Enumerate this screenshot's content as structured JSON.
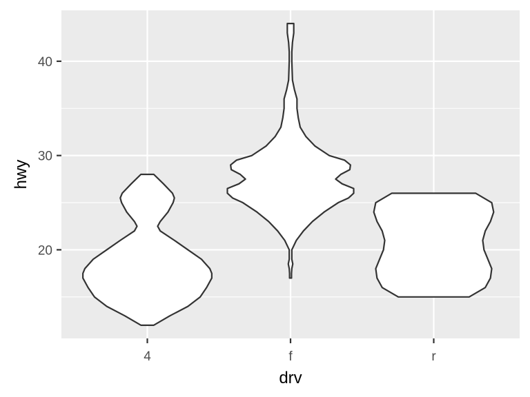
{
  "chart_data": {
    "type": "violin",
    "xlabel": "drv",
    "ylabel": "hwy",
    "categories": [
      "4",
      "f",
      "r"
    ],
    "ylim": [
      10.6,
      45.4
    ],
    "yticks": [
      20,
      30,
      40
    ],
    "y_minor_ticks": [
      15,
      25,
      35
    ],
    "grid": true,
    "legend": "none",
    "violins": [
      {
        "category": "4",
        "profile": [
          [
            12,
            0.1
          ],
          [
            13,
            0.35
          ],
          [
            14,
            0.63
          ],
          [
            15,
            0.82
          ],
          [
            16,
            0.92
          ],
          [
            17,
            1.0
          ],
          [
            17.5,
            1.0
          ],
          [
            18,
            0.97
          ],
          [
            19,
            0.84
          ],
          [
            20,
            0.63
          ],
          [
            21,
            0.42
          ],
          [
            22,
            0.2
          ],
          [
            22.5,
            0.16
          ],
          [
            23,
            0.2
          ],
          [
            24,
            0.32
          ],
          [
            25,
            0.4
          ],
          [
            25.5,
            0.42
          ],
          [
            26,
            0.39
          ],
          [
            27,
            0.25
          ],
          [
            28,
            0.1
          ]
        ]
      },
      {
        "category": "f",
        "profile": [
          [
            17,
            0.015
          ],
          [
            17.5,
            0.015
          ],
          [
            18,
            0.02
          ],
          [
            18.5,
            0.035
          ],
          [
            19,
            0.02
          ],
          [
            19.5,
            0.02
          ],
          [
            20,
            0.02
          ],
          [
            21,
            0.09
          ],
          [
            22,
            0.2
          ],
          [
            23,
            0.34
          ],
          [
            24,
            0.52
          ],
          [
            25,
            0.74
          ],
          [
            25.5,
            0.9
          ],
          [
            26,
            0.98
          ],
          [
            26.5,
            0.98
          ],
          [
            27,
            0.8
          ],
          [
            27.5,
            0.7
          ],
          [
            28,
            0.78
          ],
          [
            28.5,
            0.92
          ],
          [
            29,
            0.93
          ],
          [
            29.5,
            0.84
          ],
          [
            30,
            0.6
          ],
          [
            31,
            0.38
          ],
          [
            32,
            0.24
          ],
          [
            33,
            0.15
          ],
          [
            34,
            0.12
          ],
          [
            35,
            0.1
          ],
          [
            36,
            0.1
          ],
          [
            37,
            0.06
          ],
          [
            38,
            0.03
          ],
          [
            39,
            0.025
          ],
          [
            40,
            0.02
          ],
          [
            41,
            0.02
          ],
          [
            42,
            0.03
          ],
          [
            43,
            0.05
          ],
          [
            44,
            0.05
          ]
        ]
      },
      {
        "category": "r",
        "profile": [
          [
            15,
            0.55
          ],
          [
            16,
            0.8
          ],
          [
            17,
            0.88
          ],
          [
            18,
            0.9
          ],
          [
            19,
            0.84
          ],
          [
            20,
            0.78
          ],
          [
            21,
            0.76
          ],
          [
            22,
            0.8
          ],
          [
            23,
            0.88
          ],
          [
            24,
            0.93
          ],
          [
            25,
            0.9
          ],
          [
            26,
            0.65
          ]
        ]
      }
    ]
  }
}
